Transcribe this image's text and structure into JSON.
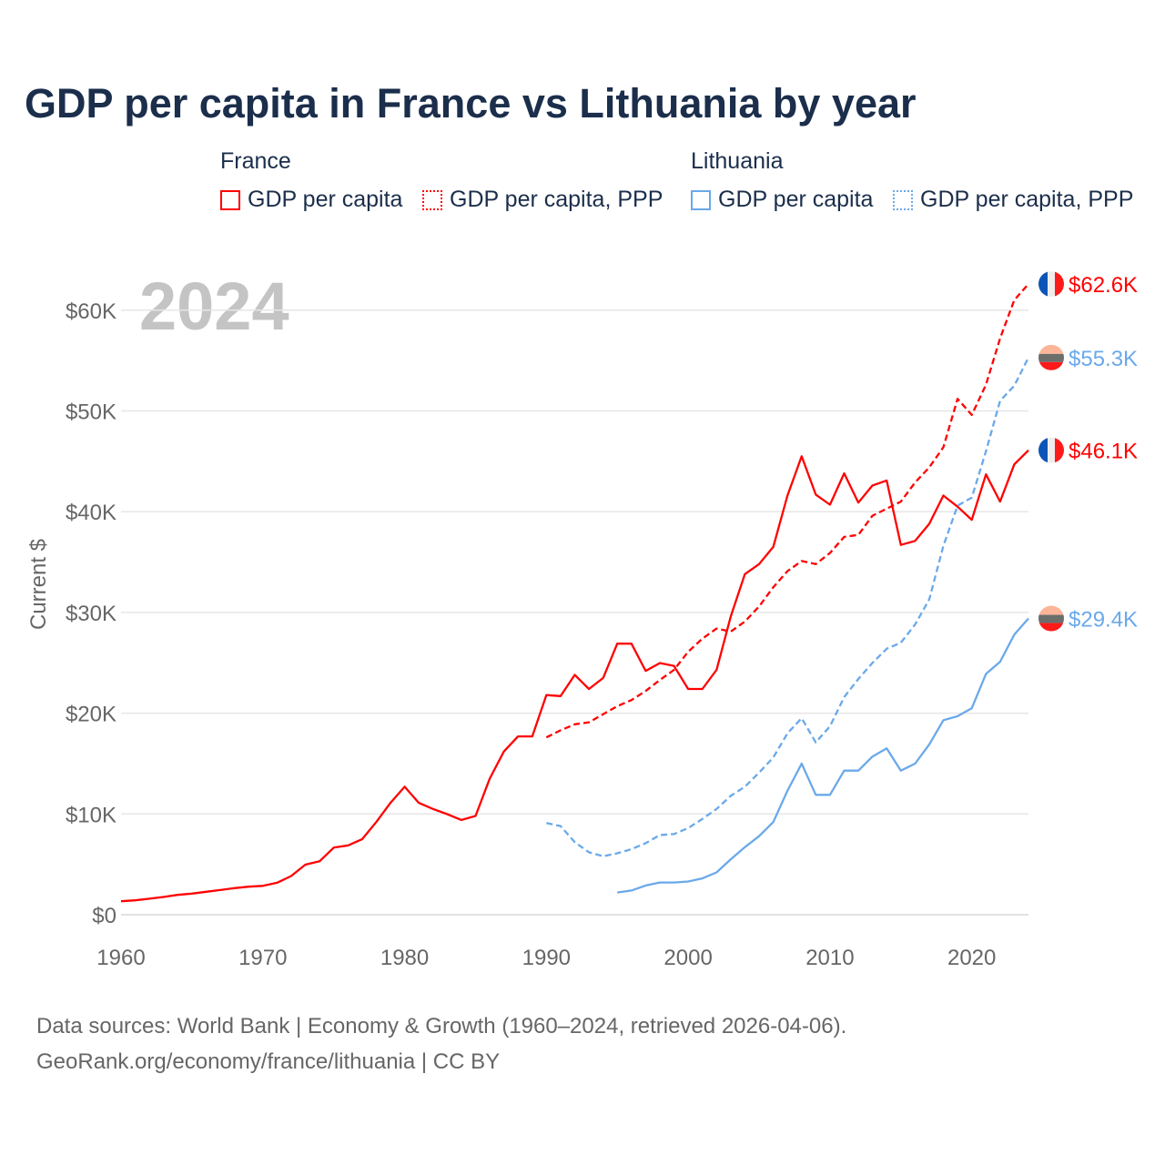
{
  "chart_data": {
    "type": "line",
    "title": "GDP per capita in France vs Lithuania by year",
    "xlabel": "",
    "ylabel": "Current $",
    "xlim": [
      1960,
      2024
    ],
    "ylim": [
      0,
      65000
    ],
    "grid": true,
    "year_watermark": "2024",
    "x_ticks": [
      "1960",
      "1970",
      "1980",
      "1990",
      "2000",
      "2010",
      "2020"
    ],
    "x_tick_values": [
      1960,
      1970,
      1980,
      1990,
      2000,
      2010,
      2020
    ],
    "y_ticks": [
      "$0",
      "$10K",
      "$20K",
      "$30K",
      "$40K",
      "$50K",
      "$60K"
    ],
    "y_tick_values": [
      0,
      10000,
      20000,
      30000,
      40000,
      50000,
      60000
    ],
    "legend": {
      "placement": "top",
      "groups": [
        {
          "name": "France",
          "items": [
            "GDP per capita",
            "GDP per capita, PPP"
          ]
        },
        {
          "name": "Lithuania",
          "items": [
            "GDP per capita",
            "GDP per capita, PPP"
          ]
        }
      ]
    },
    "series": [
      {
        "name": "France GDP per capita",
        "country": "France",
        "color": "#ff0000",
        "dash": false,
        "start": 1960,
        "end_label": "$46.1K",
        "values": [
          1.34,
          1.43,
          1.59,
          1.76,
          1.97,
          2.1,
          2.28,
          2.45,
          2.64,
          2.78,
          2.86,
          3.17,
          3.84,
          4.97,
          5.3,
          6.66,
          6.87,
          7.49,
          9.2,
          11.1,
          12.7,
          11.1,
          10.5,
          9.98,
          9.4,
          9.8,
          13.5,
          16.2,
          17.7,
          17.7,
          21.8,
          21.7,
          23.8,
          22.4,
          23.5,
          26.9,
          26.9,
          24.2,
          24.98,
          24.7,
          22.4,
          22.4,
          24.3,
          29.6,
          33.8,
          34.8,
          36.5,
          41.6,
          45.5,
          41.7,
          40.7,
          43.8,
          40.9,
          42.6,
          43.1,
          36.7,
          37.1,
          38.8,
          41.6,
          40.5,
          39.2,
          43.7,
          41.0,
          44.7,
          46.1
        ]
      },
      {
        "name": "France GDP per capita, PPP",
        "country": "France",
        "color": "#ff0000",
        "dash": true,
        "start": 1990,
        "end_label": "$62.6K",
        "values": [
          17.6,
          18.3,
          18.9,
          19.1,
          19.9,
          20.7,
          21.3,
          22.2,
          23.3,
          24.3,
          26.1,
          27.4,
          28.4,
          28.1,
          29.1,
          30.6,
          32.5,
          34.1,
          35.1,
          34.8,
          35.9,
          37.5,
          37.7,
          39.6,
          40.3,
          41.0,
          42.9,
          44.4,
          46.4,
          51.2,
          49.6,
          52.6,
          57.2,
          61.0,
          62.6
        ]
      },
      {
        "name": "Lithuania GDP per capita",
        "country": "Lithuania",
        "color": "#6aa9ea",
        "dash": false,
        "start": 1995,
        "end_label": "$29.4K",
        "values": [
          2.2,
          2.4,
          2.9,
          3.2,
          3.2,
          3.3,
          3.6,
          4.2,
          5.5,
          6.7,
          7.8,
          9.2,
          12.3,
          15.0,
          11.9,
          11.9,
          14.3,
          14.3,
          15.7,
          16.5,
          14.3,
          15.0,
          16.9,
          19.3,
          19.7,
          20.5,
          23.9,
          25.1,
          27.8,
          29.4
        ]
      },
      {
        "name": "Lithuania GDP per capita, PPP",
        "country": "Lithuania",
        "color": "#6aa9ea",
        "dash": true,
        "start": 1990,
        "end_label": "$55.3K",
        "values": [
          9.1,
          8.8,
          7.2,
          6.2,
          5.8,
          6.1,
          6.5,
          7.1,
          7.9,
          8.0,
          8.6,
          9.5,
          10.5,
          11.8,
          12.7,
          14.1,
          15.6,
          18.0,
          19.5,
          17.1,
          18.7,
          21.6,
          23.4,
          25.0,
          26.4,
          27.0,
          28.8,
          31.3,
          36.6,
          40.6,
          41.4,
          46.0,
          51.0,
          52.5,
          55.3
        ]
      }
    ],
    "value_unit": "thousand USD"
  },
  "source": {
    "line1": "Data sources: World Bank | Economy & Growth (1960–2024, retrieved 2026-04-06).",
    "line2": "GeoRank.org/economy/france/lithuania | CC BY"
  },
  "colors": {
    "france": "#ff0000",
    "lithuania": "#6aa9ea",
    "title": "#1b2e4b"
  }
}
